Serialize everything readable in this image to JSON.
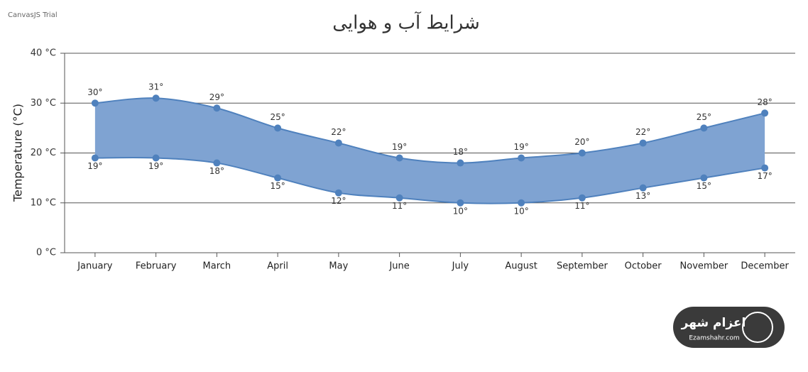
{
  "chart_data": {
    "type": "rangeSplineArea",
    "title": "شرایط آب و هوایی",
    "watermark": "CanvasJS Trial",
    "y_axis_title": "Temperature (°C)",
    "categories": [
      "January",
      "February",
      "March",
      "April",
      "May",
      "June",
      "July",
      "August",
      "September",
      "October",
      "November",
      "December"
    ],
    "series": [
      {
        "color": "#4f81bd",
        "values": [
          30,
          31,
          29,
          25,
          22,
          19,
          18,
          19,
          20,
          22,
          25,
          28
        ],
        "value_labels": [
          "30°",
          "31°",
          "29°",
          "25°",
          "22°",
          "19°",
          "18°",
          "19°",
          "20°",
          "22°",
          "25°",
          "28°"
        ]
      },
      {
        "color": "#4f81bd",
        "values": [
          19,
          19,
          18,
          15,
          12,
          11,
          10,
          10,
          11,
          13,
          15,
          17
        ],
        "value_labels": [
          "19°",
          "19°",
          "18°",
          "15°",
          "12°",
          "11°",
          "10°",
          "10°",
          "11°",
          "13°",
          "15°",
          "17°"
        ]
      }
    ],
    "fill_color": "#7fa3d2",
    "ylim": [
      0,
      40
    ],
    "yticks": [
      {
        "value": 0,
        "label": "0 °C"
      },
      {
        "value": 10,
        "label": "10 °C"
      },
      {
        "value": 20,
        "label": "20 °C"
      },
      {
        "value": 30,
        "label": "30 °C"
      },
      {
        "value": 40,
        "label": "40 °C"
      }
    ],
    "grid": true
  },
  "logo": {
    "name": "اعزام شهر",
    "site": "Ezamshahr.com"
  }
}
